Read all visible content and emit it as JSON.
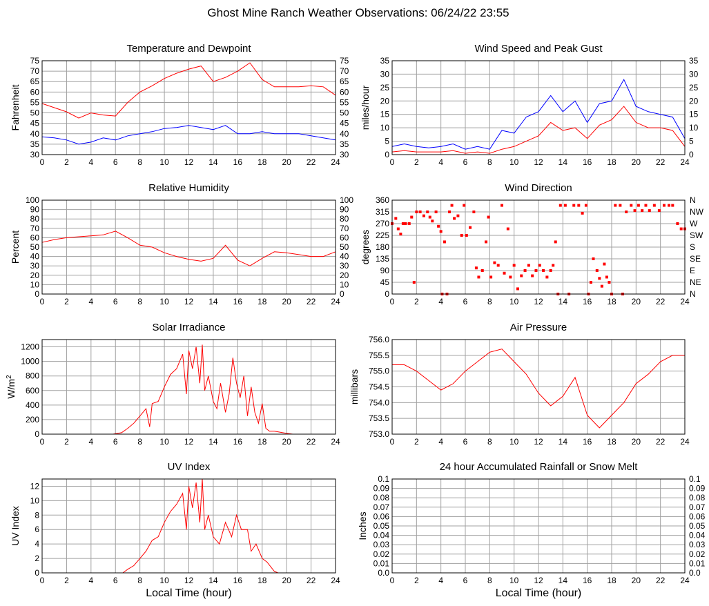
{
  "page_title": "Ghost Mine Ranch Weather Observations: 06/24/22 23:55",
  "colors": {
    "red": "#ff0000",
    "blue": "#0000ff",
    "grid": "#a0a0a0"
  },
  "chart_data": [
    {
      "id": "temp",
      "type": "line",
      "title": "Temperature and Dewpoint",
      "ylabel": "Fahrenheit",
      "xlabel": "",
      "ylim": [
        30,
        75
      ],
      "yticks": [
        30,
        35,
        40,
        45,
        50,
        55,
        60,
        65,
        70,
        75
      ],
      "right_axis": true,
      "x": [
        0,
        1,
        2,
        3,
        4,
        5,
        6,
        7,
        8,
        9,
        10,
        11,
        12,
        13,
        14,
        15,
        16,
        17,
        18,
        19,
        20,
        21,
        22,
        23,
        24
      ],
      "series": [
        {
          "color": "red",
          "values": [
            54.5,
            52.5,
            50.5,
            47.5,
            50,
            49,
            48.5,
            55,
            60,
            63,
            66.5,
            69,
            71,
            72.5,
            65,
            67,
            70,
            74,
            66,
            62.5,
            62.5,
            62.5,
            63,
            62.5,
            58.5
          ]
        },
        {
          "color": "blue",
          "values": [
            38.5,
            38,
            37,
            35,
            36,
            38,
            37,
            39,
            40,
            41,
            42.5,
            43,
            44,
            43,
            42,
            44,
            40,
            40,
            41,
            40,
            40,
            40,
            39,
            38,
            37
          ]
        }
      ]
    },
    {
      "id": "wind",
      "type": "line",
      "title": "Wind Speed and Peak Gust",
      "ylabel": "miles/hour",
      "xlabel": "",
      "ylim": [
        0,
        35
      ],
      "yticks": [
        0,
        5,
        10,
        15,
        20,
        25,
        30,
        35
      ],
      "right_axis": true,
      "x": [
        0,
        1,
        2,
        3,
        4,
        5,
        6,
        7,
        8,
        9,
        10,
        11,
        12,
        13,
        14,
        15,
        16,
        17,
        18,
        19,
        20,
        21,
        22,
        23,
        24
      ],
      "series": [
        {
          "color": "blue",
          "values": [
            3,
            4,
            3,
            2.5,
            3,
            4,
            2,
            3,
            2,
            9,
            8,
            14,
            16,
            22,
            16,
            20,
            12,
            19,
            20,
            28,
            18,
            16,
            15,
            14,
            6
          ]
        },
        {
          "color": "red",
          "values": [
            1,
            1.5,
            1,
            1,
            1,
            1.5,
            0.5,
            1,
            0.5,
            2,
            3,
            5,
            7,
            12,
            9,
            10,
            6,
            11,
            13,
            18,
            12,
            10,
            10,
            9,
            3
          ]
        }
      ]
    },
    {
      "id": "rh",
      "type": "line",
      "title": "Relative Humidity",
      "ylabel": "Percent",
      "xlabel": "",
      "ylim": [
        0,
        100
      ],
      "yticks": [
        0,
        10,
        20,
        30,
        40,
        50,
        60,
        70,
        80,
        90,
        100
      ],
      "right_axis": true,
      "x": [
        0,
        1,
        2,
        3,
        4,
        5,
        6,
        7,
        8,
        9,
        10,
        11,
        12,
        13,
        14,
        15,
        16,
        17,
        18,
        19,
        20,
        21,
        22,
        23,
        24
      ],
      "series": [
        {
          "color": "red",
          "values": [
            55,
            58,
            60,
            61,
            62,
            63,
            67,
            60,
            52,
            50,
            44,
            40,
            37,
            35,
            38,
            52,
            36,
            30,
            38,
            45,
            44,
            42,
            40,
            40,
            45
          ]
        }
      ]
    },
    {
      "id": "wdir",
      "type": "scatter",
      "title": "Wind Direction",
      "ylabel": "degrees",
      "xlabel": "",
      "ylim": [
        0,
        360
      ],
      "yticks": [
        0,
        45,
        90,
        135,
        180,
        225,
        270,
        315,
        360
      ],
      "right_labels": [
        "N",
        "NE",
        "E",
        "SE",
        "S",
        "SW",
        "W",
        "NW",
        "N"
      ],
      "points": [
        [
          0,
          270
        ],
        [
          0.3,
          290
        ],
        [
          0.5,
          250
        ],
        [
          0.7,
          230
        ],
        [
          0.9,
          270
        ],
        [
          1.1,
          270
        ],
        [
          1.4,
          270
        ],
        [
          1.6,
          295
        ],
        [
          1.8,
          45
        ],
        [
          2.0,
          315
        ],
        [
          2.3,
          315
        ],
        [
          2.6,
          300
        ],
        [
          2.9,
          315
        ],
        [
          3.1,
          295
        ],
        [
          3.3,
          280
        ],
        [
          3.6,
          315
        ],
        [
          3.8,
          260
        ],
        [
          4.0,
          240
        ],
        [
          4.1,
          0
        ],
        [
          4.3,
          200
        ],
        [
          4.5,
          0
        ],
        [
          4.7,
          315
        ],
        [
          4.9,
          340
        ],
        [
          5.1,
          290
        ],
        [
          5.4,
          300
        ],
        [
          5.7,
          225
        ],
        [
          5.9,
          340
        ],
        [
          6.1,
          225
        ],
        [
          6.4,
          255
        ],
        [
          6.7,
          315
        ],
        [
          6.9,
          100
        ],
        [
          7.1,
          65
        ],
        [
          7.4,
          90
        ],
        [
          7.7,
          200
        ],
        [
          7.9,
          295
        ],
        [
          8.1,
          65
        ],
        [
          8.4,
          120
        ],
        [
          8.7,
          110
        ],
        [
          9.0,
          340
        ],
        [
          9.2,
          80
        ],
        [
          9.5,
          250
        ],
        [
          9.7,
          65
        ],
        [
          10.0,
          110
        ],
        [
          10.3,
          20
        ],
        [
          10.6,
          70
        ],
        [
          10.9,
          90
        ],
        [
          11.2,
          110
        ],
        [
          11.5,
          70
        ],
        [
          11.8,
          90
        ],
        [
          12.1,
          110
        ],
        [
          12.4,
          90
        ],
        [
          12.7,
          65
        ],
        [
          13.0,
          90
        ],
        [
          13.2,
          110
        ],
        [
          13.4,
          200
        ],
        [
          13.6,
          0
        ],
        [
          13.8,
          340
        ],
        [
          14.2,
          340
        ],
        [
          14.5,
          0
        ],
        [
          14.9,
          340
        ],
        [
          15.3,
          340
        ],
        [
          15.6,
          310
        ],
        [
          15.9,
          340
        ],
        [
          16.1,
          0
        ],
        [
          16.3,
          45
        ],
        [
          16.5,
          135
        ],
        [
          16.8,
          90
        ],
        [
          17.0,
          60
        ],
        [
          17.2,
          30
        ],
        [
          17.4,
          115
        ],
        [
          17.6,
          65
        ],
        [
          17.8,
          45
        ],
        [
          18.0,
          0
        ],
        [
          18.3,
          340
        ],
        [
          18.7,
          340
        ],
        [
          18.9,
          0
        ],
        [
          19.2,
          315
        ],
        [
          19.6,
          340
        ],
        [
          19.9,
          320
        ],
        [
          20.2,
          340
        ],
        [
          20.5,
          320
        ],
        [
          20.8,
          340
        ],
        [
          21.1,
          320
        ],
        [
          21.5,
          340
        ],
        [
          21.9,
          320
        ],
        [
          22.3,
          340
        ],
        [
          22.7,
          340
        ],
        [
          23.0,
          340
        ],
        [
          23.4,
          270
        ],
        [
          23.7,
          250
        ],
        [
          24,
          250
        ]
      ]
    },
    {
      "id": "solar",
      "type": "line",
      "title": "Solar Irradiance",
      "ylabel": "W/m2",
      "xlabel": "",
      "ylim": [
        0,
        1300
      ],
      "yticks": [
        0,
        200,
        400,
        600,
        800,
        1000,
        1200
      ],
      "right_axis": false,
      "x": [
        0,
        5.8,
        6.5,
        7,
        7.5,
        8,
        8.5,
        8.8,
        9,
        9.5,
        10,
        10.5,
        11,
        11.5,
        11.8,
        12,
        12.3,
        12.6,
        12.9,
        13.1,
        13.3,
        13.6,
        14,
        14.3,
        14.6,
        15,
        15.3,
        15.6,
        15.9,
        16.2,
        16.5,
        16.8,
        17.1,
        17.4,
        17.7,
        18,
        18.3,
        18.6,
        19,
        20,
        20.5,
        24
      ],
      "series": [
        {
          "color": "red",
          "values": [
            0,
            0,
            20,
            80,
            150,
            250,
            350,
            100,
            420,
            450,
            650,
            820,
            900,
            1100,
            550,
            1150,
            900,
            1200,
            700,
            1230,
            600,
            800,
            450,
            350,
            700,
            300,
            550,
            1050,
            700,
            500,
            800,
            250,
            650,
            300,
            150,
            420,
            80,
            40,
            40,
            10,
            0,
            0
          ]
        }
      ]
    },
    {
      "id": "pressure",
      "type": "line",
      "title": "Air Pressure",
      "ylabel": "millibars",
      "xlabel": "",
      "ylim": [
        753.0,
        756.0
      ],
      "yticks": [
        753.0,
        753.5,
        754.0,
        754.5,
        755.0,
        755.5,
        756.0
      ],
      "right_axis": false,
      "x": [
        0,
        1,
        2,
        3,
        4,
        5,
        6,
        7,
        8,
        9,
        10,
        11,
        12,
        13,
        14,
        15,
        16,
        17,
        18,
        19,
        20,
        21,
        22,
        23,
        24
      ],
      "series": [
        {
          "color": "red",
          "values": [
            755.2,
            755.2,
            755.0,
            754.7,
            754.4,
            754.6,
            755.0,
            755.3,
            755.6,
            755.7,
            755.3,
            754.9,
            754.3,
            753.9,
            754.2,
            754.8,
            753.6,
            753.2,
            753.6,
            754.0,
            754.6,
            754.9,
            755.3,
            755.5,
            755.5
          ]
        }
      ]
    },
    {
      "id": "uv",
      "type": "line",
      "title": "UV Index",
      "ylabel": "UV Index",
      "xlabel": "Local Time (hour)",
      "ylim": [
        0,
        13
      ],
      "yticks": [
        0,
        2,
        4,
        6,
        8,
        10,
        12
      ],
      "right_axis": false,
      "x": [
        0,
        6.6,
        7,
        7.5,
        8,
        8.5,
        9,
        9.5,
        10,
        10.5,
        11,
        11.5,
        11.8,
        12,
        12.3,
        12.6,
        12.9,
        13.1,
        13.3,
        13.6,
        14,
        14.5,
        15,
        15.5,
        15.9,
        16.3,
        16.8,
        17.1,
        17.5,
        18,
        18.4,
        19,
        19.3,
        24
      ],
      "series": [
        {
          "color": "red",
          "values": [
            0,
            0,
            0.5,
            1,
            2,
            3,
            4.5,
            5,
            7,
            8.5,
            9.5,
            11,
            6,
            12,
            9,
            12.5,
            7,
            13,
            6,
            8,
            5,
            4,
            7,
            5,
            8,
            6,
            6,
            3,
            4,
            2,
            1.5,
            0.2,
            0,
            0
          ]
        }
      ]
    },
    {
      "id": "rain",
      "type": "line",
      "title": "24 hour Accumulated Rainfall or Snow Melt",
      "ylabel": "Inches",
      "xlabel": "Local Time (hour)",
      "ylim": [
        0,
        0.1
      ],
      "yticks": [
        0.0,
        0.01,
        0.02,
        0.03,
        0.04,
        0.05,
        0.06,
        0.07,
        0.08,
        0.09,
        0.1
      ],
      "right_axis": true,
      "x": [
        0,
        24
      ],
      "series": [
        {
          "color": "red",
          "values": [
            0,
            0
          ]
        }
      ]
    }
  ],
  "xticks": [
    0,
    2,
    4,
    6,
    8,
    10,
    12,
    14,
    16,
    18,
    20,
    22,
    24
  ]
}
